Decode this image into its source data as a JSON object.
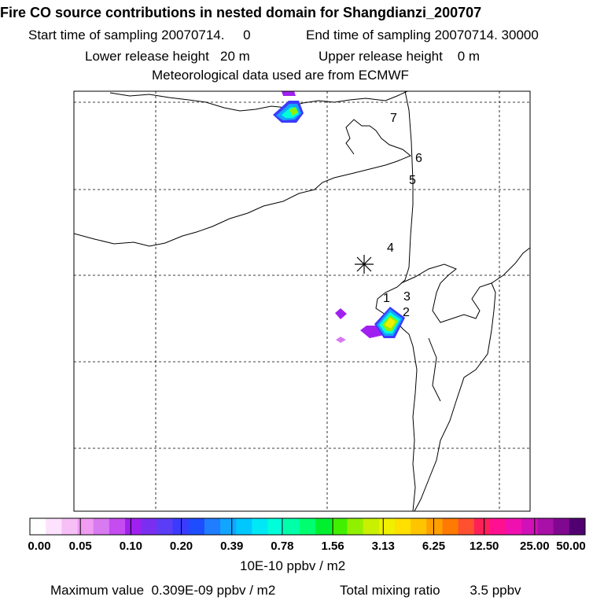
{
  "header": {
    "title": "Fire CO source contributions in nested domain for Shangdianzi_200707",
    "start_label": "Start time of sampling 20070714.     0",
    "end_label": "End time of sampling 20070714. 30000",
    "lower_label": "Lower release height   20 m",
    "upper_label": "Upper release height    0 m",
    "met_label": "Meteorological data used are from ECMWF"
  },
  "map": {
    "labels": [
      "1",
      "2",
      "3",
      "4",
      "5",
      "6",
      "7"
    ],
    "receptor_icon": "asterisk-receptor-marker"
  },
  "legend": {
    "ticks": [
      "0.00",
      "0.05",
      "0.10",
      "0.20",
      "0.39",
      "0.78",
      "1.56",
      "3.13",
      "6.25",
      "12.50",
      "25.00",
      "50.00"
    ],
    "unit": "10E-10 ppbv / m2",
    "colors": [
      "#ffffff",
      "#fde2fd",
      "#f6bff6",
      "#ef9cf2",
      "#d87af0",
      "#c44cf0",
      "#a020f0",
      "#7a2ff0",
      "#5a3df5",
      "#3b3bff",
      "#1e4cff",
      "#1f7dff",
      "#12a5ff",
      "#00c8ff",
      "#00e8f5",
      "#00ffd8",
      "#00ffa8",
      "#00ff70",
      "#00f030",
      "#40f000",
      "#90f000",
      "#c8f000",
      "#f0f000",
      "#ffe000",
      "#ffc400",
      "#ffa000",
      "#ff7a00",
      "#ff5030",
      "#ff2058",
      "#ff1090",
      "#f010b0",
      "#d010b8",
      "#a810a8",
      "#800890",
      "#500070"
    ]
  },
  "footer": {
    "max_label": "Maximum value  0.309E-09 ppbv / m2",
    "total_label": "Total mixing ratio        3.5 ppbv"
  }
}
